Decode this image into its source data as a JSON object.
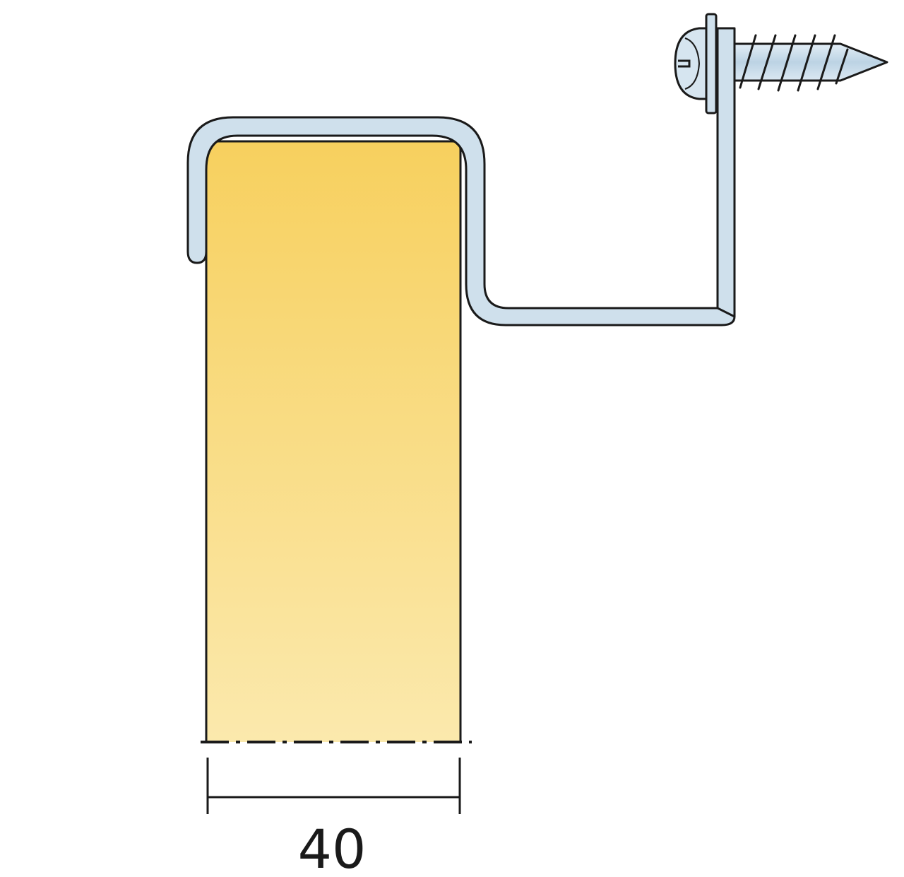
{
  "dimension": {
    "width_label": "40"
  },
  "colors": {
    "timber_top": "#f7d05e",
    "timber_bottom": "#fbe9ad",
    "metal": "#cfe0ec",
    "metal_dark": "#b4cddf",
    "outline": "#1a1a1a"
  },
  "icons": {
    "fastener": "screw-icon",
    "bracket": "z-bracket-icon"
  }
}
